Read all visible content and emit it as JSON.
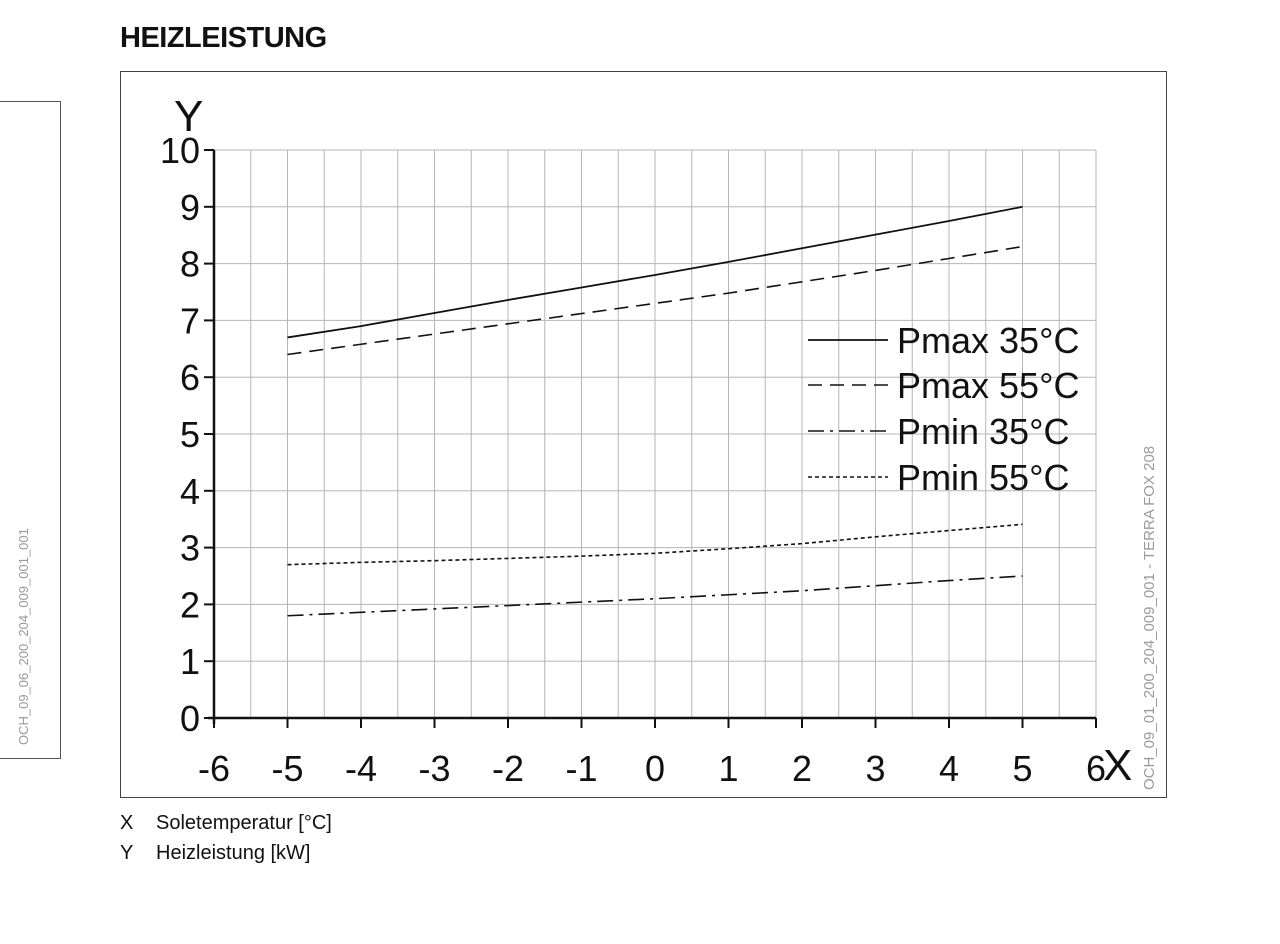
{
  "heading": "HEIZLEISTUNG",
  "side_code": "OCH_09_06_200_204_009_001_001",
  "chart_code": "OCH_09_01_200_204_009_001 - TERRA FOX 208",
  "axis_key": [
    {
      "symbol": "X",
      "text": "Soletemperatur [°C]"
    },
    {
      "symbol": "Y",
      "text": "Heizleistung [kW]"
    }
  ],
  "chart_data": {
    "type": "line",
    "title": "HEIZLEISTUNG",
    "xlabel": "X",
    "ylabel": "Y",
    "xlim": [
      -6,
      6
    ],
    "ylim": [
      0,
      10
    ],
    "x_ticks": [
      "-6",
      "-5",
      "-4",
      "-3",
      "-2",
      "-1",
      "0",
      "1",
      "2",
      "3",
      "4",
      "5",
      "6"
    ],
    "y_ticks": [
      "0",
      "1",
      "2",
      "3",
      "4",
      "5",
      "6",
      "7",
      "8",
      "9",
      "10"
    ],
    "grid": true,
    "legend_position": "right",
    "x": [
      -5,
      -4,
      -3,
      -2,
      -1,
      0,
      1,
      2,
      3,
      4,
      5
    ],
    "series": [
      {
        "name": "Pmax 35°C",
        "style": "solid",
        "values": [
          6.7,
          6.9,
          7.13,
          7.36,
          7.58,
          7.8,
          8.03,
          8.27,
          8.51,
          8.75,
          9.0
        ]
      },
      {
        "name": "Pmax 55°C",
        "style": "dashed",
        "values": [
          6.4,
          6.58,
          6.76,
          6.94,
          7.12,
          7.3,
          7.48,
          7.68,
          7.88,
          8.09,
          8.3
        ]
      },
      {
        "name": "Pmin 35°C",
        "style": "dashdot",
        "values": [
          1.8,
          1.86,
          1.92,
          1.98,
          2.04,
          2.1,
          2.17,
          2.24,
          2.33,
          2.42,
          2.5
        ]
      },
      {
        "name": "Pmin 55°C",
        "style": "dotted",
        "values": [
          2.7,
          2.74,
          2.77,
          2.81,
          2.85,
          2.9,
          2.98,
          3.07,
          3.19,
          3.3,
          3.41
        ]
      }
    ]
  }
}
